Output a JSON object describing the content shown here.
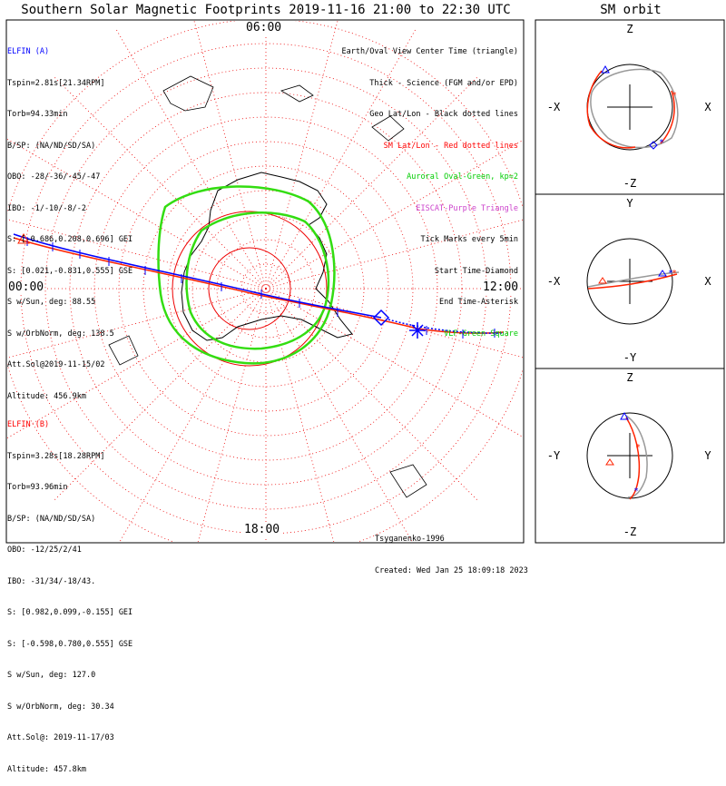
{
  "title": "Southern Solar Magnetic Footprints 2019-11-16 21:00 to 22:30 UTC",
  "orbit_title": "SM orbit",
  "mlt_labels": {
    "top": "06:00",
    "left": "00:00",
    "right": "12:00",
    "bottom": "18:00"
  },
  "elfin_a": {
    "header": "ELFIN (A)",
    "color": "#0000ff",
    "lines": [
      "Tspin=2.81s[21.34RPM]",
      "Torb=94.33min",
      "B/SP: (NA/ND/SD/SA)",
      "OBO: -28/-36/-45/-47",
      "IBO: -1/-10/-8/-2",
      "S: [-0.686,0.208,0.696] GEI",
      "S: [0.021,-0.831,0.555] GSE",
      "S w/Sun, deg: 88.55",
      "S w/OrbNorm, deg: 138.5",
      "Att.Sol@2019-11-15/02",
      "Altitude: 456.9km"
    ]
  },
  "elfin_b": {
    "header": "ELFIN (B)",
    "color": "#ff0000",
    "lines": [
      "Tspin=3.28s[18.28RPM]",
      "Torb=93.96min",
      "B/SP: (NA/ND/SD/SA)",
      "OBO: -12/25/2/41",
      "IBO: -31/34/-18/43.",
      "S: [0.982,0.099,-0.155] GEI",
      "S: [-0.598,0.780,0.555] GSE",
      "S w/Sun, deg: 127.0",
      "S w/OrbNorm, deg: 30.34",
      "Att.Sol@: 2019-11-17/03",
      "Altitude: 457.8km"
    ]
  },
  "legend": [
    {
      "text": "Earth/Oval View Center Time (triangle)",
      "color": "#000000"
    },
    {
      "text": "Thick - Science (FGM and/or EPD)",
      "color": "#000000"
    },
    {
      "text": "Geo Lat/Lon - Black dotted lines",
      "color": "#000000"
    },
    {
      "text": "SM Lat/Lon - Red dotted lines",
      "color": "#ff0000"
    },
    {
      "text": "Auroral Oval-Green, kp=2",
      "color": "#00cc00"
    },
    {
      "text": "EISCAT-Purple Triangle",
      "color": "#cc44cc"
    },
    {
      "text": "Tick Marks every 5min",
      "color": "#000000"
    },
    {
      "text": "Start Time-Diamond",
      "color": "#000000"
    },
    {
      "text": "End Time-Asterisk",
      "color": "#000000"
    },
    {
      "text": "VLF-Green Square",
      "color": "#00cc00"
    }
  ],
  "credits": {
    "author": "Tsyganenko-1996",
    "created": "Created: Wed Jan 25 18:09:18 2023"
  },
  "orbit_panels": [
    {
      "top": "Z",
      "bottom": "-Z",
      "left": "-X",
      "right": "X"
    },
    {
      "top": "Y",
      "bottom": "-Y",
      "left": "-X",
      "right": "X"
    },
    {
      "top": "Z",
      "bottom": "-Z",
      "left": "-Y",
      "right": "Y"
    }
  ],
  "chart_data": {
    "type": "polar-map",
    "projection": "southern hemisphere, magnetic local time",
    "series": [
      {
        "name": "ELFIN (A)",
        "color": "#0000ff"
      },
      {
        "name": "ELFIN (B)",
        "color": "#ff0000"
      }
    ]
  }
}
